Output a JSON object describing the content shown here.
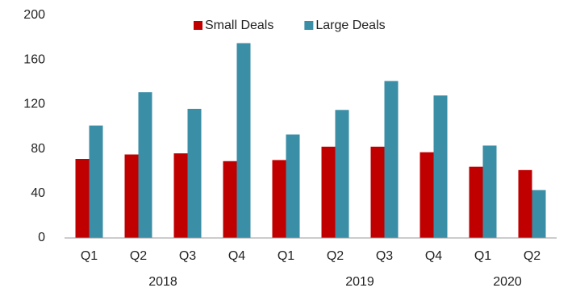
{
  "chart_data": {
    "type": "bar",
    "category_groups": [
      {
        "label": "2018",
        "categories": [
          "Q1",
          "Q2",
          "Q3",
          "Q4"
        ]
      },
      {
        "label": "2019",
        "categories": [
          "Q1",
          "Q2",
          "Q3",
          "Q4"
        ]
      },
      {
        "label": "2020",
        "categories": [
          "Q1",
          "Q2"
        ]
      }
    ],
    "series": [
      {
        "name": "Small Deals",
        "color": "#c00000",
        "values": [
          71,
          75,
          76,
          69,
          70,
          82,
          82,
          77,
          64,
          61
        ]
      },
      {
        "name": "Large Deals",
        "color": "#3a8ea5",
        "values": [
          101,
          131,
          116,
          175,
          93,
          115,
          141,
          128,
          83,
          43
        ]
      }
    ],
    "ylim": [
      0,
      200
    ],
    "yticks": [
      0,
      40,
      80,
      120,
      160,
      200
    ],
    "grid": false,
    "legend": "top"
  }
}
